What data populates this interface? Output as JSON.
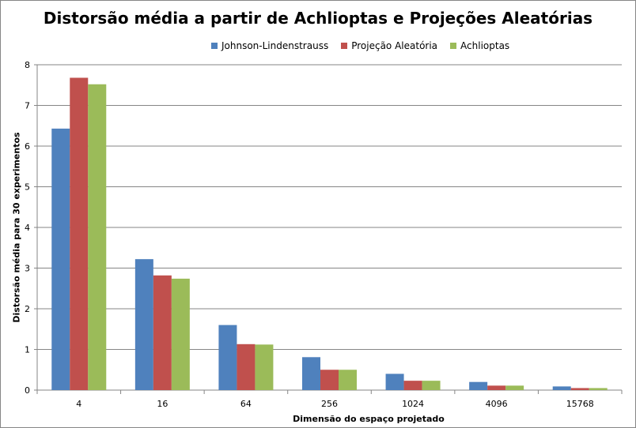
{
  "chart_data": {
    "type": "bar",
    "title": "Distorsão média a partir de Achlioptas e Projeções Aleatórias",
    "xlabel": "Dimensão do espaço projetado",
    "ylabel": "Distorsão média para 30 experimentos",
    "categories": [
      "4",
      "16",
      "64",
      "256",
      "1024",
      "4096",
      "15768"
    ],
    "series": [
      {
        "name": "Johnson-Lindenstrauss",
        "color": "#4F81BD",
        "values": [
          6.43,
          3.22,
          1.6,
          0.81,
          0.4,
          0.2,
          0.09
        ]
      },
      {
        "name": "Projeção Aleatória",
        "color": "#C0504D",
        "values": [
          7.68,
          2.82,
          1.13,
          0.5,
          0.23,
          0.11,
          0.05
        ]
      },
      {
        "name": "Achlioptas",
        "color": "#9BBB59",
        "values": [
          7.52,
          2.74,
          1.12,
          0.5,
          0.23,
          0.11,
          0.05
        ]
      }
    ],
    "ylim": [
      0,
      8
    ],
    "yticks": [
      0,
      1,
      2,
      3,
      4,
      5,
      6,
      7,
      8
    ],
    "grid": true,
    "legend_position": "top"
  }
}
